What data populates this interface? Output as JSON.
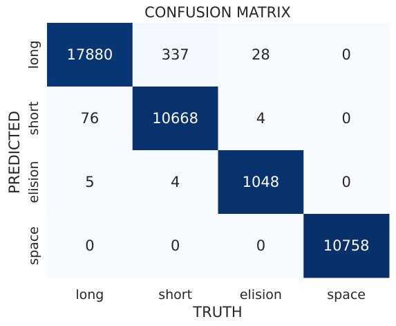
{
  "chart_data": {
    "type": "heatmap",
    "title": "CONFUSION MATRIX",
    "xlabel": "TRUTH",
    "ylabel": "PREDICTED",
    "x_categories": [
      "long",
      "short",
      "elision",
      "space"
    ],
    "y_categories": [
      "long",
      "short",
      "elision",
      "space"
    ],
    "values": [
      [
        17880,
        337,
        28,
        0
      ],
      [
        76,
        10668,
        4,
        0
      ],
      [
        5,
        4,
        1048,
        0
      ],
      [
        0,
        0,
        0,
        10758
      ]
    ],
    "colormap": "Blues",
    "color_scale": "row-normalized",
    "colors": {
      "low": "#f7fbff",
      "high": "#08306b",
      "text_on_dark": "#ffffff",
      "text_on_light": "#262626"
    },
    "colorbar": false,
    "grid": false
  }
}
